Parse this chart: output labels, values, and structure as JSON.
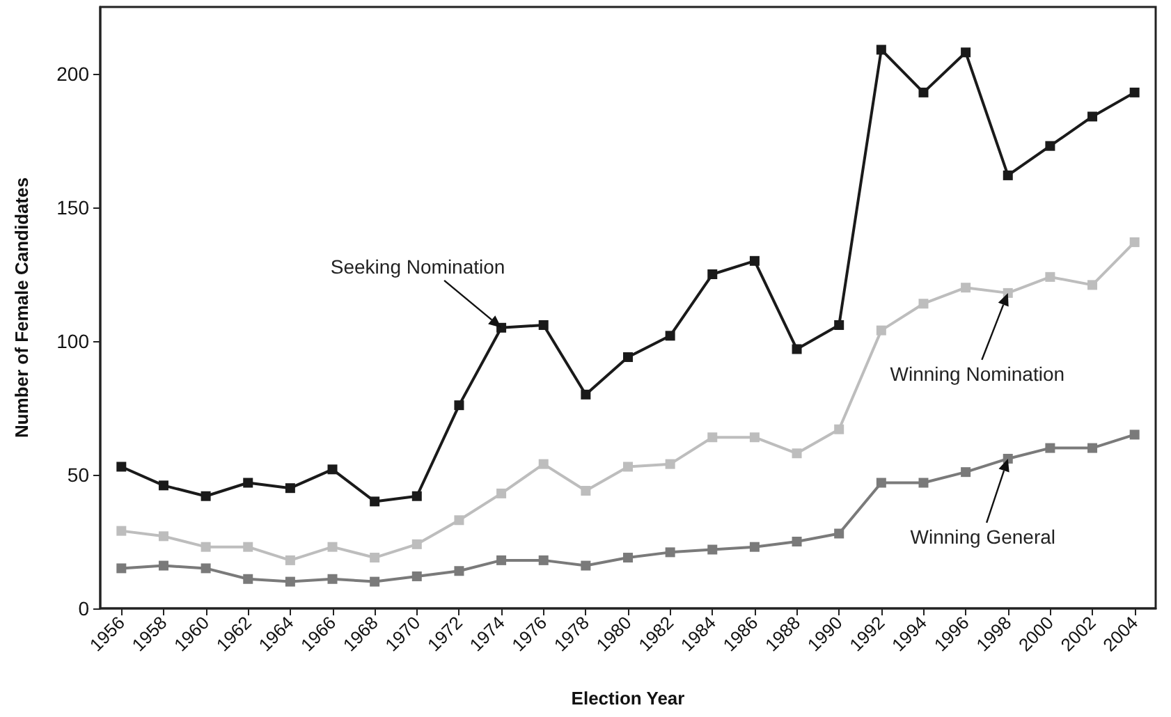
{
  "chart_data": {
    "type": "line",
    "xlabel": "Election Year",
    "ylabel": "Number of Female Candidates",
    "categories": [
      "1956",
      "1958",
      "1960",
      "1962",
      "1964",
      "1966",
      "1968",
      "1970",
      "1972",
      "1974",
      "1976",
      "1978",
      "1980",
      "1982",
      "1984",
      "1986",
      "1988",
      "1990",
      "1992",
      "1994",
      "1996",
      "1998",
      "2000",
      "2002",
      "2004"
    ],
    "series": [
      {
        "color": "#1a1a1a",
        "values": [
          53,
          46,
          42,
          47,
          45,
          52,
          40,
          42,
          76,
          105,
          106,
          80,
          94,
          102,
          125,
          130,
          97,
          106,
          209,
          193,
          208,
          162,
          173,
          184,
          193
        ]
      },
      {
        "color": "#bdbdbd",
        "values": [
          29,
          27,
          23,
          23,
          18,
          23,
          19,
          24,
          33,
          43,
          54,
          44,
          53,
          54,
          64,
          64,
          58,
          67,
          104,
          114,
          120,
          118,
          124,
          121,
          137
        ]
      },
      {
        "color": "#7a7a7a",
        "values": [
          15,
          16,
          15,
          11,
          10,
          11,
          10,
          12,
          14,
          18,
          18,
          16,
          19,
          21,
          22,
          23,
          25,
          28,
          47,
          47,
          51,
          56,
          60,
          60,
          65
        ]
      }
    ],
    "annotations": [
      {
        "text": "Seeking Nomination",
        "x": "1974",
        "y": 105
      },
      {
        "text": "Winning Nomination",
        "x": "1998",
        "y": 118
      },
      {
        "text": "Winning General",
        "x": "1998",
        "y": 56
      }
    ],
    "ylim": [
      0,
      225
    ],
    "yticks": [
      0,
      50,
      100,
      150,
      200
    ],
    "grid": false,
    "marker": "square",
    "line_style": "solid"
  }
}
